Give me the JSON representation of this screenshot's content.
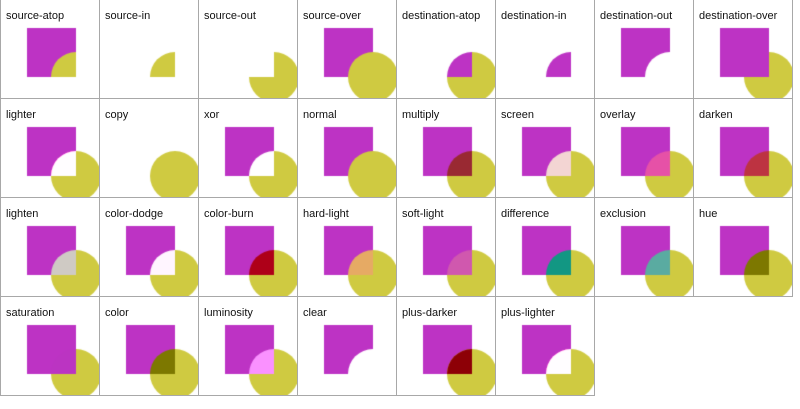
{
  "colors": {
    "square": "#bd33c4",
    "circle": "#cfca41"
  },
  "operations": [
    "source-atop",
    "source-in",
    "source-out",
    "source-over",
    "destination-atop",
    "destination-in",
    "destination-out",
    "destination-over",
    "lighter",
    "copy",
    "xor",
    "normal",
    "multiply",
    "screen",
    "overlay",
    "darken",
    "lighten",
    "color-dodge",
    "color-burn",
    "hard-light",
    "soft-light",
    "difference",
    "exclusion",
    "hue",
    "saturation",
    "color",
    "luminosity",
    "clear",
    "plus-darker",
    "plus-lighter"
  ]
}
